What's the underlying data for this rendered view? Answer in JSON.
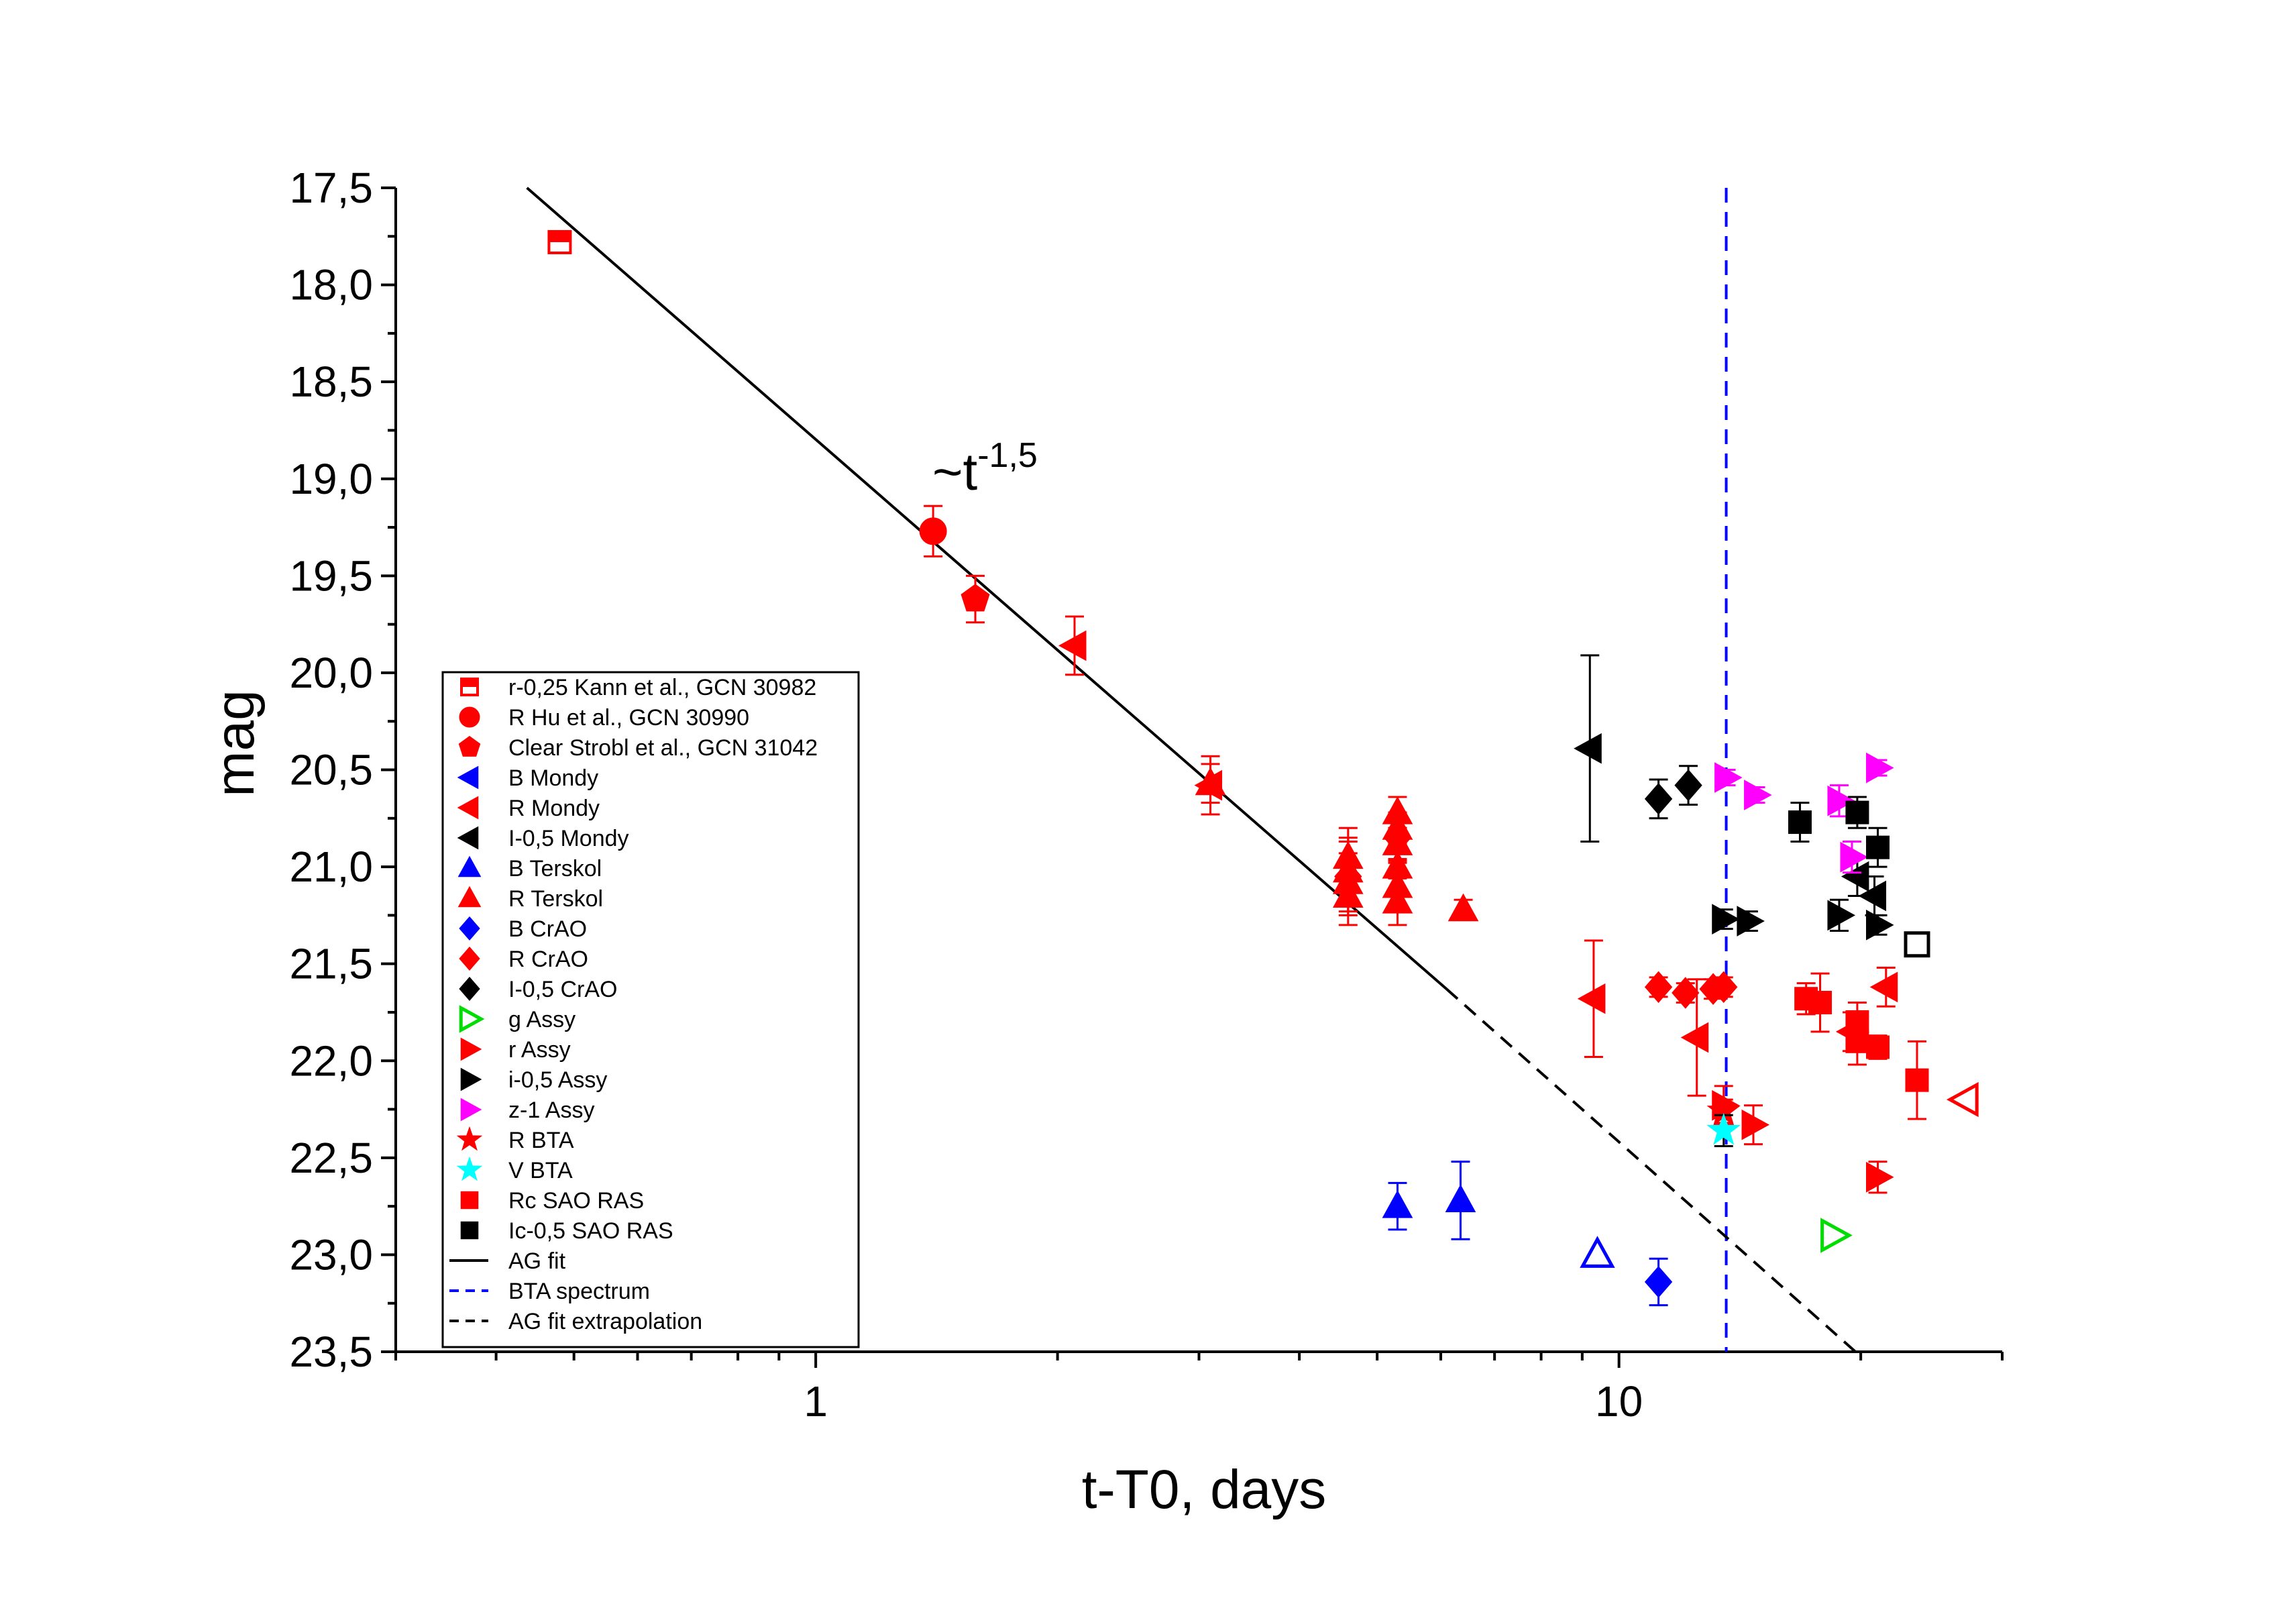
{
  "chart_data": {
    "type": "scatter",
    "xlabel": "t-T0, days",
    "ylabel": "mag",
    "x_scale": "log",
    "xlim": [
      0.3,
      30
    ],
    "ylim": [
      17.5,
      23.5
    ],
    "y_inverted": true,
    "x_ticks": [
      "1",
      "10"
    ],
    "y_ticks": [
      "17,5",
      "18,0",
      "18,5",
      "19,0",
      "19,5",
      "20,0",
      "20,5",
      "21,0",
      "21,5",
      "22,0",
      "22,5",
      "23,0",
      "23,5"
    ],
    "grid": false,
    "legend_position": "bottom-left",
    "annotation": {
      "base": "~t",
      "exponent": "-1,5"
    },
    "series": [
      {
        "name": "r-0,25 Kann et al., GCN 30982",
        "marker": "square-half",
        "color": "#ff0000",
        "points": [
          {
            "x": 0.48,
            "y": 17.78
          }
        ]
      },
      {
        "name": "R Hu et al., GCN 30990",
        "marker": "circle",
        "color": "#ff0000",
        "points": [
          {
            "x": 1.4,
            "y": 19.27,
            "err": 0.13
          }
        ]
      },
      {
        "name": "Clear Strobl et al., GCN 31042",
        "marker": "pentagon",
        "color": "#ff0000",
        "points": [
          {
            "x": 1.58,
            "y": 19.62,
            "err": 0.12
          }
        ]
      },
      {
        "name": "B Mondy",
        "marker": "triangle-left",
        "color": "#0000ff",
        "points": []
      },
      {
        "name": "R Mondy",
        "marker": "triangle-left",
        "color": "#ff0000",
        "points": [
          {
            "x": 2.1,
            "y": 19.86,
            "err": 0.15
          },
          {
            "x": 3.1,
            "y": 20.58,
            "err": 0.15
          },
          {
            "x": 9.3,
            "y": 21.68,
            "err": 0.3
          },
          {
            "x": 12.5,
            "y": 21.88,
            "err": 0.3
          },
          {
            "x": 19.5,
            "y": 21.85,
            "err": 0.1
          },
          {
            "x": 21.5,
            "y": 21.62,
            "err": 0.1
          }
        ]
      },
      {
        "name": "I-0,5 Mondy",
        "marker": "triangle-left",
        "color": "#000000",
        "points": [
          {
            "x": 9.2,
            "y": 20.39,
            "err": 0.48
          },
          {
            "x": 19.8,
            "y": 21.05,
            "err": 0.1
          },
          {
            "x": 20.8,
            "y": 21.15,
            "err": 0.1
          }
        ]
      },
      {
        "name": "B Terskol",
        "marker": "triangle-up",
        "color": "#0000ff",
        "points": [
          {
            "x": 5.3,
            "y": 22.75,
            "err": 0.12
          },
          {
            "x": 6.35,
            "y": 22.72,
            "err": 0.2
          }
        ]
      },
      {
        "name": "R Terskol",
        "marker": "triangle-up",
        "color": "#ff0000",
        "points": [
          {
            "x": 3.1,
            "y": 20.57,
            "err": 0.1
          },
          {
            "x": 4.6,
            "y": 20.95,
            "err": 0.15
          },
          {
            "x": 4.6,
            "y": 21.02,
            "err": 0.15
          },
          {
            "x": 4.6,
            "y": 21.08,
            "err": 0.15
          },
          {
            "x": 4.6,
            "y": 21.15,
            "err": 0.15
          },
          {
            "x": 5.3,
            "y": 20.72,
            "err": 0.08
          },
          {
            "x": 5.3,
            "y": 20.8,
            "err": 0.08
          },
          {
            "x": 5.3,
            "y": 20.88,
            "err": 0.08
          },
          {
            "x": 5.3,
            "y": 21.0,
            "err": 0.12
          },
          {
            "x": 5.3,
            "y": 21.1,
            "err": 0.12
          },
          {
            "x": 5.3,
            "y": 21.18,
            "err": 0.12
          },
          {
            "x": 6.4,
            "y": 21.22,
            "err": 0.05
          }
        ]
      },
      {
        "name": "B CrAO",
        "marker": "diamond",
        "color": "#0000ff",
        "points": [
          {
            "x": 11.2,
            "y": 23.14,
            "err": 0.12
          }
        ]
      },
      {
        "name": "R CrAO",
        "marker": "diamond",
        "color": "#ff0000",
        "points": [
          {
            "x": 4.6,
            "y": 21.05,
            "err": 0.2
          },
          {
            "x": 5.3,
            "y": 20.85,
            "err": 0.12
          },
          {
            "x": 11.2,
            "y": 21.62,
            "err": 0.05
          },
          {
            "x": 12.1,
            "y": 21.65,
            "err": 0.05
          },
          {
            "x": 13.1,
            "y": 21.63,
            "err": 0.05
          },
          {
            "x": 13.5,
            "y": 21.62,
            "err": 0.05
          }
        ]
      },
      {
        "name": "I-0,5 CrAO",
        "marker": "diamond",
        "color": "#000000",
        "points": [
          {
            "x": 11.2,
            "y": 20.65,
            "err": 0.1
          },
          {
            "x": 12.2,
            "y": 20.58,
            "err": 0.1
          }
        ]
      },
      {
        "name": "g Assy",
        "marker": "triangle-right-open",
        "color": "#00dd00",
        "points": [
          {
            "x": 18.5,
            "y": 22.9
          }
        ]
      },
      {
        "name": "r Assy",
        "marker": "triangle-right",
        "color": "#ff0000",
        "points": [
          {
            "x": 13.5,
            "y": 22.23,
            "err": 0.1
          },
          {
            "x": 14.7,
            "y": 22.33,
            "err": 0.1
          },
          {
            "x": 21.0,
            "y": 22.6,
            "err": 0.08
          }
        ]
      },
      {
        "name": "i-0,5 Assy",
        "marker": "triangle-right",
        "color": "#000000",
        "points": [
          {
            "x": 13.5,
            "y": 21.27,
            "err": 0.05
          },
          {
            "x": 14.5,
            "y": 21.28,
            "err": 0.05
          },
          {
            "x": 18.8,
            "y": 21.25,
            "err": 0.08
          },
          {
            "x": 21.0,
            "y": 21.3,
            "err": 0.05
          }
        ]
      },
      {
        "name": "z-1 Assy",
        "marker": "triangle-right",
        "color": "#ff00ff",
        "points": [
          {
            "x": 13.6,
            "y": 20.54,
            "err": 0.04
          },
          {
            "x": 14.8,
            "y": 20.63,
            "err": 0.04
          },
          {
            "x": 18.8,
            "y": 20.66,
            "err": 0.08
          },
          {
            "x": 19.5,
            "y": 20.95,
            "err": 0.08
          },
          {
            "x": 21.0,
            "y": 20.49,
            "err": 0.04
          }
        ]
      },
      {
        "name": "R BTA",
        "marker": "star",
        "color": "#ff0000",
        "points": [
          {
            "x": 13.5,
            "y": 22.26,
            "err": 0.06
          }
        ]
      },
      {
        "name": "V BTA",
        "marker": "star",
        "color": "#00ffff",
        "points": [
          {
            "x": 13.5,
            "y": 22.36,
            "err": 0.08
          }
        ]
      },
      {
        "name": "Rc SAO RAS",
        "marker": "square",
        "color": "#ff0000",
        "points": [
          {
            "x": 17.1,
            "y": 21.68,
            "err": 0.08
          },
          {
            "x": 17.8,
            "y": 21.7,
            "err": 0.15
          },
          {
            "x": 19.8,
            "y": 21.8,
            "err": 0.1
          },
          {
            "x": 19.8,
            "y": 21.9,
            "err": 0.12
          },
          {
            "x": 21.0,
            "y": 21.93,
            "err": 0.06
          },
          {
            "x": 23.5,
            "y": 22.1,
            "err": 0.2
          }
        ]
      },
      {
        "name": "Ic-0,5 SAO RAS",
        "marker": "square",
        "color": "#000000",
        "points": [
          {
            "x": 16.8,
            "y": 20.77,
            "err": 0.1
          },
          {
            "x": 19.8,
            "y": 20.72,
            "err": 0.08
          },
          {
            "x": 21.0,
            "y": 20.9,
            "err": 0.1
          },
          {
            "x": 23.5,
            "y": 21.4,
            "open": true
          }
        ]
      },
      {
        "name": "R Mondy (open)",
        "legend": false,
        "marker": "triangle-left-open",
        "color": "#ff0000",
        "points": [
          {
            "x": 27.0,
            "y": 22.2
          }
        ]
      },
      {
        "name": "B Terskol (open)",
        "legend": false,
        "marker": "triangle-up-open",
        "color": "#0000ff",
        "points": [
          {
            "x": 9.4,
            "y": 23.0
          }
        ]
      },
      {
        "name": "AG fit",
        "line": "solid",
        "color": "#000000",
        "x": [
          0.437,
          6.1
        ],
        "y": [
          17.5,
          21.63
        ]
      },
      {
        "name": "BTA spectrum",
        "line": "dashed",
        "color": "#0000ff",
        "x": [
          13.6,
          13.6
        ],
        "y": [
          17.5,
          23.5
        ]
      },
      {
        "name": "AG fit extrapolation",
        "line": "dashed",
        "color": "#000000",
        "x": [
          6.1,
          19.7
        ],
        "y": [
          21.63,
          23.5
        ]
      }
    ]
  }
}
